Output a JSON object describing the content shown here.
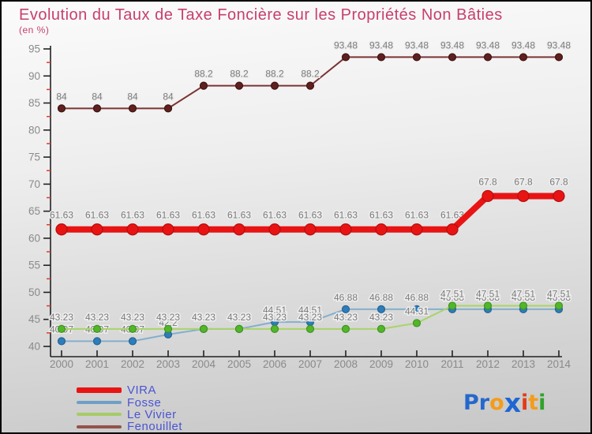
{
  "title": "Evolution du Taux de Taxe Foncière sur les Propriétés Non Bâties",
  "subtitle": "(en %)",
  "theme": {
    "title_color": "#c73f6d",
    "axis_color": "#222222",
    "tick_label_color": "#8a8a8a",
    "minor_tick_color": "#e23b30",
    "data_label_color": "#7a7a7a",
    "data_label_halo": "#efefef",
    "legend_text_color": "#4a55d2",
    "background_top": "#fbfbfb",
    "background_bottom": "#c7c7c7"
  },
  "chart_data": {
    "type": "line",
    "title": "Evolution du Taux de Taxe Foncière sur les Propriétés Non Bâties",
    "subtitle": "(en %)",
    "xlabel": "",
    "ylabel": "",
    "x": [
      2000,
      2001,
      2002,
      2003,
      2004,
      2005,
      2006,
      2007,
      2008,
      2009,
      2010,
      2011,
      2012,
      2013,
      2014
    ],
    "ylim": [
      40,
      95
    ],
    "y_major_step": 5,
    "y_minor_step": 2.5,
    "grid": false,
    "legend_position": "bottom-left",
    "draw_order": [
      1,
      2,
      3,
      0
    ],
    "series": [
      {
        "name": "VIRA",
        "line_color": "#e81414",
        "marker_fill": "#e81414",
        "marker_stroke": "#b50d0d",
        "legend_swatch": "#e81414",
        "line_width": 8,
        "marker_r": 7,
        "swatch_h": 7,
        "label_offset": 14,
        "labels_under_line": true,
        "values": [
          61.63,
          61.63,
          61.63,
          61.63,
          61.63,
          61.63,
          61.63,
          61.63,
          61.63,
          61.63,
          61.63,
          61.63,
          67.8,
          67.8,
          67.8
        ]
      },
      {
        "name": "Fosse",
        "line_color": "#85afcd",
        "marker_fill": "#2e7cb8",
        "marker_stroke": "#246698",
        "legend_swatch": "#6f9fc6",
        "line_width": 2,
        "marker_r": 4.5,
        "swatch_h": 4,
        "label_offset": 11,
        "labels_under_line": false,
        "values": [
          40.97,
          40.97,
          40.97,
          42.2,
          43.23,
          43.23,
          44.51,
          44.51,
          46.88,
          46.88,
          46.88,
          46.88,
          46.88,
          46.88,
          46.88
        ]
      },
      {
        "name": "Le Vivier",
        "line_color": "#a9d468",
        "marker_fill": "#53b62a",
        "marker_stroke": "#3f9420",
        "legend_swatch": "#a6cc66",
        "line_width": 2,
        "marker_r": 4.5,
        "swatch_h": 4,
        "label_offset": 11,
        "labels_under_line": false,
        "values": [
          43.23,
          43.23,
          43.23,
          43.23,
          43.23,
          43.23,
          43.23,
          43.23,
          43.23,
          43.23,
          44.31,
          47.51,
          47.51,
          47.51,
          47.51
        ]
      },
      {
        "name": "Fenouillet",
        "line_color": "#7b3434",
        "marker_fill": "#5f2020",
        "marker_stroke": "#401212",
        "legend_swatch": "#94524a",
        "line_width": 2,
        "marker_r": 4.5,
        "swatch_h": 4,
        "label_offset": 11,
        "labels_under_line": false,
        "values": [
          84,
          84,
          84,
          84,
          88.2,
          88.2,
          88.2,
          88.2,
          93.48,
          93.48,
          93.48,
          93.48,
          93.48,
          93.48,
          93.48
        ]
      }
    ]
  },
  "logo": {
    "letters": [
      {
        "ch": "P",
        "color": "#2468cc",
        "big": false
      },
      {
        "ch": "r",
        "color": "#2468cc",
        "big": false
      },
      {
        "ch": "o",
        "color": "#f49c19",
        "big": false
      },
      {
        "ch": "x",
        "color": "#2066d2",
        "big": true
      },
      {
        "ch": "i",
        "color": "#e23c18",
        "big": false
      },
      {
        "ch": "t",
        "color": "#f49c19",
        "big": false
      },
      {
        "ch": "i",
        "color": "#2fa32a",
        "big": false
      }
    ]
  }
}
